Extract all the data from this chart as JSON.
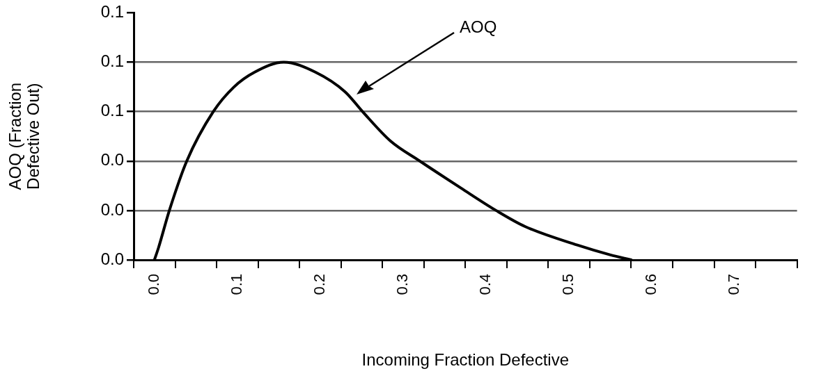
{
  "chart_data": {
    "type": "line",
    "xlabel": "Incoming Fraction Defective",
    "ylabel": "AOQ (Fraction Defective Out)",
    "x": [
      0,
      0.005,
      0.018,
      0.039,
      0.071,
      0.096,
      0.121,
      0.156,
      0.194,
      0.23,
      0.251,
      0.285,
      0.32,
      0.37,
      0.412,
      0.447,
      0.51,
      0.55,
      0.575
    ],
    "values": [
      0,
      0.005,
      0.02,
      0.04,
      0.06,
      0.07,
      0.076,
      0.08,
      0.076,
      0.068,
      0.06,
      0.048,
      0.04,
      0.029,
      0.02,
      0.0135,
      0.006,
      0.002,
      0
    ],
    "color": "#000000",
    "marker": "none",
    "line_style": "solid",
    "xlim": [
      -0.025,
      0.775
    ],
    "xticks": [
      {
        "value": -0.025,
        "label": null
      },
      {
        "value": 0,
        "label": "0.0"
      },
      {
        "value": 0.025,
        "label": null
      },
      {
        "value": 0.075,
        "label": null
      },
      {
        "value": 0.1,
        "label": "0.1"
      },
      {
        "value": 0.125,
        "label": null
      },
      {
        "value": 0.175,
        "label": null
      },
      {
        "value": 0.2,
        "label": "0.2"
      },
      {
        "value": 0.225,
        "label": null
      },
      {
        "value": 0.275,
        "label": null
      },
      {
        "value": 0.3,
        "label": "0.3"
      },
      {
        "value": 0.325,
        "label": null
      },
      {
        "value": 0.375,
        "label": null
      },
      {
        "value": 0.4,
        "label": "0.4"
      },
      {
        "value": 0.425,
        "label": null
      },
      {
        "value": 0.475,
        "label": null
      },
      {
        "value": 0.5,
        "label": "0.5"
      },
      {
        "value": 0.525,
        "label": null
      },
      {
        "value": 0.575,
        "label": null
      },
      {
        "value": 0.6,
        "label": "0.6"
      },
      {
        "value": 0.625,
        "label": null
      },
      {
        "value": 0.675,
        "label": null
      },
      {
        "value": 0.7,
        "label": "0.7"
      },
      {
        "value": 0.725,
        "label": null
      },
      {
        "value": 0.775,
        "label": null
      }
    ],
    "ylim": [
      0,
      0.1
    ],
    "yticks": [
      {
        "value": 0,
        "label": "0.0"
      },
      {
        "value": 0.02,
        "label": "0.0"
      },
      {
        "value": 0.04,
        "label": "0.0"
      },
      {
        "value": 0.06,
        "label": "0.1"
      },
      {
        "value": 0.08,
        "label": "0.1"
      },
      {
        "value": 0.1,
        "label": "0.1"
      }
    ],
    "grid": "y",
    "annotations": [
      "AOQ"
    ]
  }
}
